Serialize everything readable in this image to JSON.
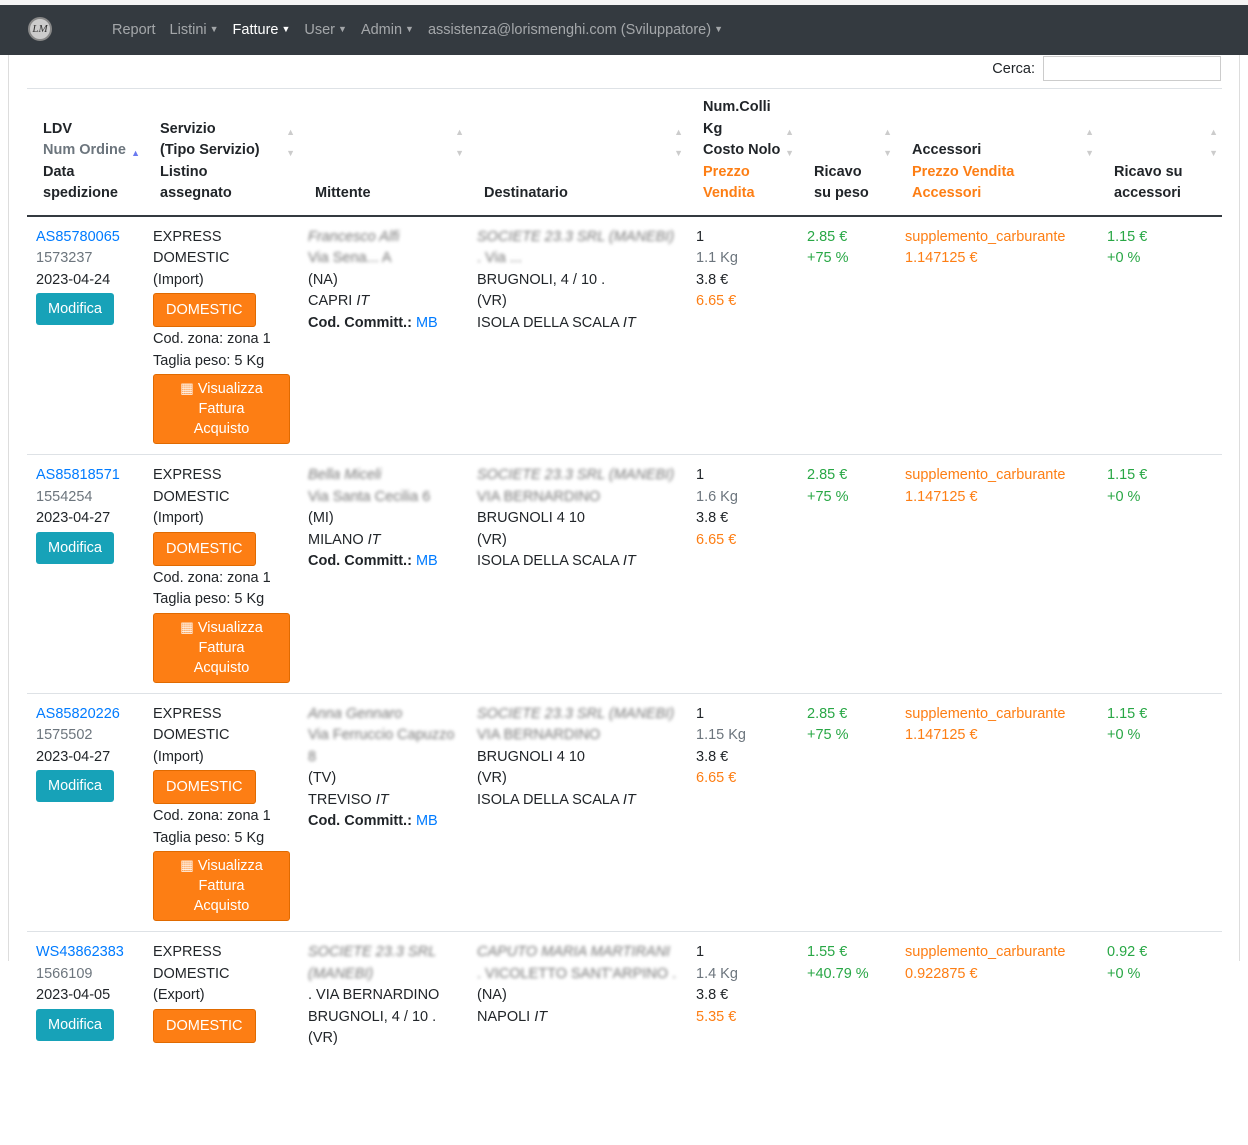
{
  "nav": {
    "logo": "LM",
    "items": [
      {
        "label": "Report",
        "dropdown": false
      },
      {
        "label": "Listini",
        "dropdown": true
      },
      {
        "label": "Fatture",
        "dropdown": true,
        "active": true
      },
      {
        "label": "User",
        "dropdown": true
      },
      {
        "label": "Admin",
        "dropdown": true
      },
      {
        "label": "assistenza@lorismenghi.com (Sviluppatore)",
        "dropdown": true
      }
    ]
  },
  "search": {
    "label": "Cerca:",
    "value": ""
  },
  "headers": {
    "c1": [
      "LDV",
      "Num Ordine",
      "Data",
      "spedizione"
    ],
    "c2": [
      "Servizio",
      "(Tipo Servizio)",
      "Listino assegnato"
    ],
    "c3": "Mittente",
    "c4": "Destinatario",
    "c5": [
      "Num.Colli",
      "Kg",
      "Costo Nolo",
      "Prezzo",
      "Vendita"
    ],
    "c6": [
      "Ricavo",
      "su peso"
    ],
    "c7": [
      "Accessori",
      "Prezzo Vendita",
      "Accessori"
    ],
    "c8": [
      "Ricavo su",
      "accessori"
    ]
  },
  "labels": {
    "modifica": "Modifica",
    "visualizza": "Visualizza",
    "fattura": "Fattura Acquisto",
    "committ": "Cod. Committ.:"
  },
  "rows": [
    {
      "ldv": "AS85780065",
      "ordine": "1573237",
      "data": "2023-04-24",
      "servizio": "EXPRESS",
      "tipo": "DOMESTIC",
      "dir": "(Import)",
      "listino": "DOMESTIC",
      "zona": "Cod. zona: zona 1",
      "taglia": "Taglia peso: 5 Kg",
      "mitt": [
        "Francesco Alfi",
        "Via Sena... A",
        "(NA)",
        "CAPRI"
      ],
      "mitt_country": "IT",
      "committ": "MB",
      "dest": [
        "SOCIETE 23.3 SRL (MANEBI)",
        ". Via ...",
        "BRUGNOLI, 4 / 10 .",
        "(VR)",
        "ISOLA DELLA SCALA"
      ],
      "dest_country": "IT",
      "colli": "1",
      "kg": "1.1 Kg",
      "nolo": "3.8 €",
      "vendita": "6.65 €",
      "ricavo": "2.85 €",
      "ricavo_pct": "+75 %",
      "acc": "supplemento_carburante",
      "acc_prezzo": "1.147125 €",
      "ricavo_acc": "1.15 €",
      "ricavo_acc_pct": "+0 %"
    },
    {
      "ldv": "AS85818571",
      "ordine": "1554254",
      "data": "2023-04-27",
      "servizio": "EXPRESS",
      "tipo": "DOMESTIC",
      "dir": "(Import)",
      "listino": "DOMESTIC",
      "zona": "Cod. zona: zona 1",
      "taglia": "Taglia peso: 5 Kg",
      "mitt": [
        "Bella Miceli",
        "Via Santa Cecilia 6",
        "(MI)",
        "MILANO"
      ],
      "mitt_country": "IT",
      "committ": "MB",
      "dest": [
        "SOCIETE 23.3 SRL (MANEBI)",
        "VIA BERNARDINO",
        "BRUGNOLI 4 10",
        "(VR)",
        "ISOLA DELLA SCALA"
      ],
      "dest_country": "IT",
      "colli": "1",
      "kg": "1.6 Kg",
      "nolo": "3.8 €",
      "vendita": "6.65 €",
      "ricavo": "2.85 €",
      "ricavo_pct": "+75 %",
      "acc": "supplemento_carburante",
      "acc_prezzo": "1.147125 €",
      "ricavo_acc": "1.15 €",
      "ricavo_acc_pct": "+0 %"
    },
    {
      "ldv": "AS85820226",
      "ordine": "1575502",
      "data": "2023-04-27",
      "servizio": "EXPRESS",
      "tipo": "DOMESTIC",
      "dir": "(Import)",
      "listino": "DOMESTIC",
      "zona": "Cod. zona: zona 1",
      "taglia": "Taglia peso: 5 Kg",
      "mitt": [
        "Anna Gennaro",
        "Via Ferruccio Capuzzo 8",
        "(TV)",
        "TREVISO"
      ],
      "mitt_country": "IT",
      "committ": "MB",
      "dest": [
        "SOCIETE 23.3 SRL (MANEBI)",
        "VIA BERNARDINO",
        "BRUGNOLI 4 10",
        "(VR)",
        "ISOLA DELLA SCALA"
      ],
      "dest_country": "IT",
      "colli": "1",
      "kg": "1.15 Kg",
      "nolo": "3.8 €",
      "vendita": "6.65 €",
      "ricavo": "2.85 €",
      "ricavo_pct": "+75 %",
      "acc": "supplemento_carburante",
      "acc_prezzo": "1.147125 €",
      "ricavo_acc": "1.15 €",
      "ricavo_acc_pct": "+0 %"
    },
    {
      "ldv": "WS43862383",
      "ordine": "1566109",
      "data": "2023-04-05",
      "servizio": "EXPRESS",
      "tipo": "DOMESTIC",
      "dir": "(Export)",
      "listino": "DOMESTIC",
      "zona": "",
      "taglia": "",
      "mitt": [
        "SOCIETE 23.3 SRL",
        "(MANEBI)",
        ". VIA BERNARDINO",
        "BRUGNOLI, 4 / 10 .",
        "(VR)"
      ],
      "mitt_country": "",
      "committ": "",
      "dest": [
        "CAPUTO MARIA MARTIRANI",
        ". VICOLETTO SANT'ARPINO .",
        "(NA)",
        "NAPOLI"
      ],
      "dest_country": "IT",
      "colli": "1",
      "kg": "1.4 Kg",
      "nolo": "3.8 €",
      "vendita": "5.35 €",
      "ricavo": "1.55 €",
      "ricavo_pct": "+40.79 %",
      "acc": "supplemento_carburante",
      "acc_prezzo": "0.922875 €",
      "ricavo_acc": "0.92 €",
      "ricavo_acc_pct": "+0 %"
    }
  ]
}
